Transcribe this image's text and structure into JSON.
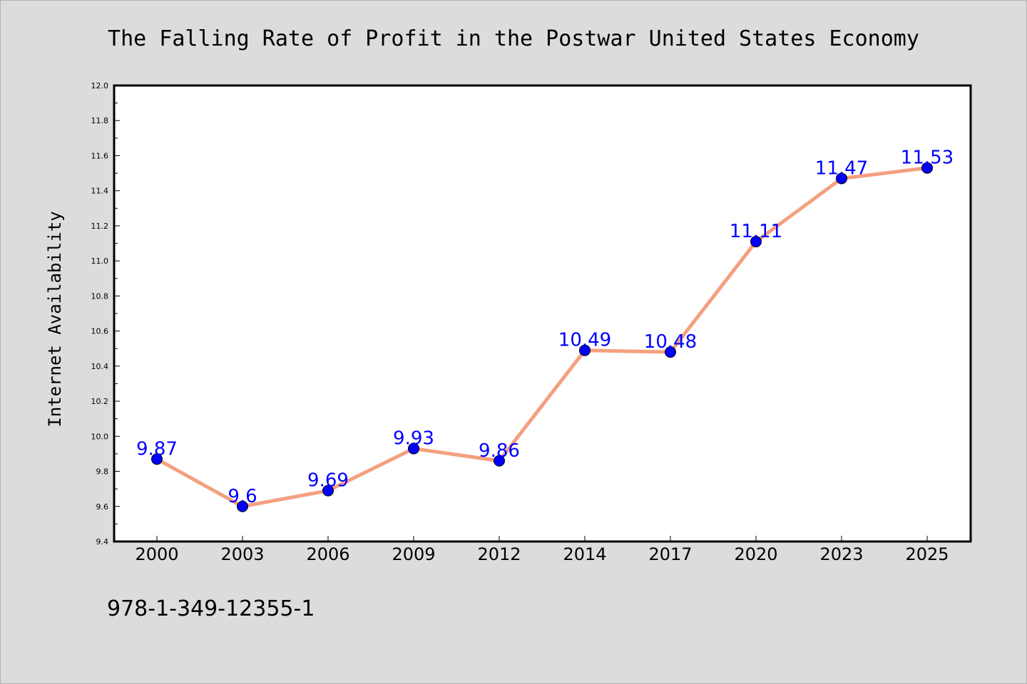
{
  "chart_data": {
    "type": "line",
    "title": "The Falling Rate of Profit in the Postwar United States Economy",
    "xlabel": "",
    "ylabel": "Internet Availability",
    "categories": [
      "2000",
      "2003",
      "2006",
      "2009",
      "2012",
      "2014",
      "2017",
      "2020",
      "2023",
      "2025"
    ],
    "series": [
      {
        "values": [
          9.87,
          9.6,
          9.69,
          9.93,
          9.86,
          10.49,
          10.48,
          11.11,
          11.47,
          11.53
        ],
        "labels": [
          "9.87",
          "9.6",
          "9.69",
          "9.93",
          "9.86",
          "10.49",
          "10.48",
          "11.11",
          "11.47",
          "11.53"
        ],
        "line_color": "#f4a07f",
        "marker_color": "#0000ff"
      }
    ],
    "ylim": [
      9.4,
      12.0
    ],
    "yticks": [
      "9.4",
      "9.6",
      "9.8",
      "10.0",
      "10.2",
      "10.4",
      "10.6",
      "10.8",
      "11.0",
      "11.2",
      "11.4",
      "11.6",
      "11.8",
      "12.0"
    ],
    "label_color": "#0000ff",
    "grid": false,
    "legend": "none"
  },
  "footer": {
    "code": "978-1-349-12355-1"
  }
}
